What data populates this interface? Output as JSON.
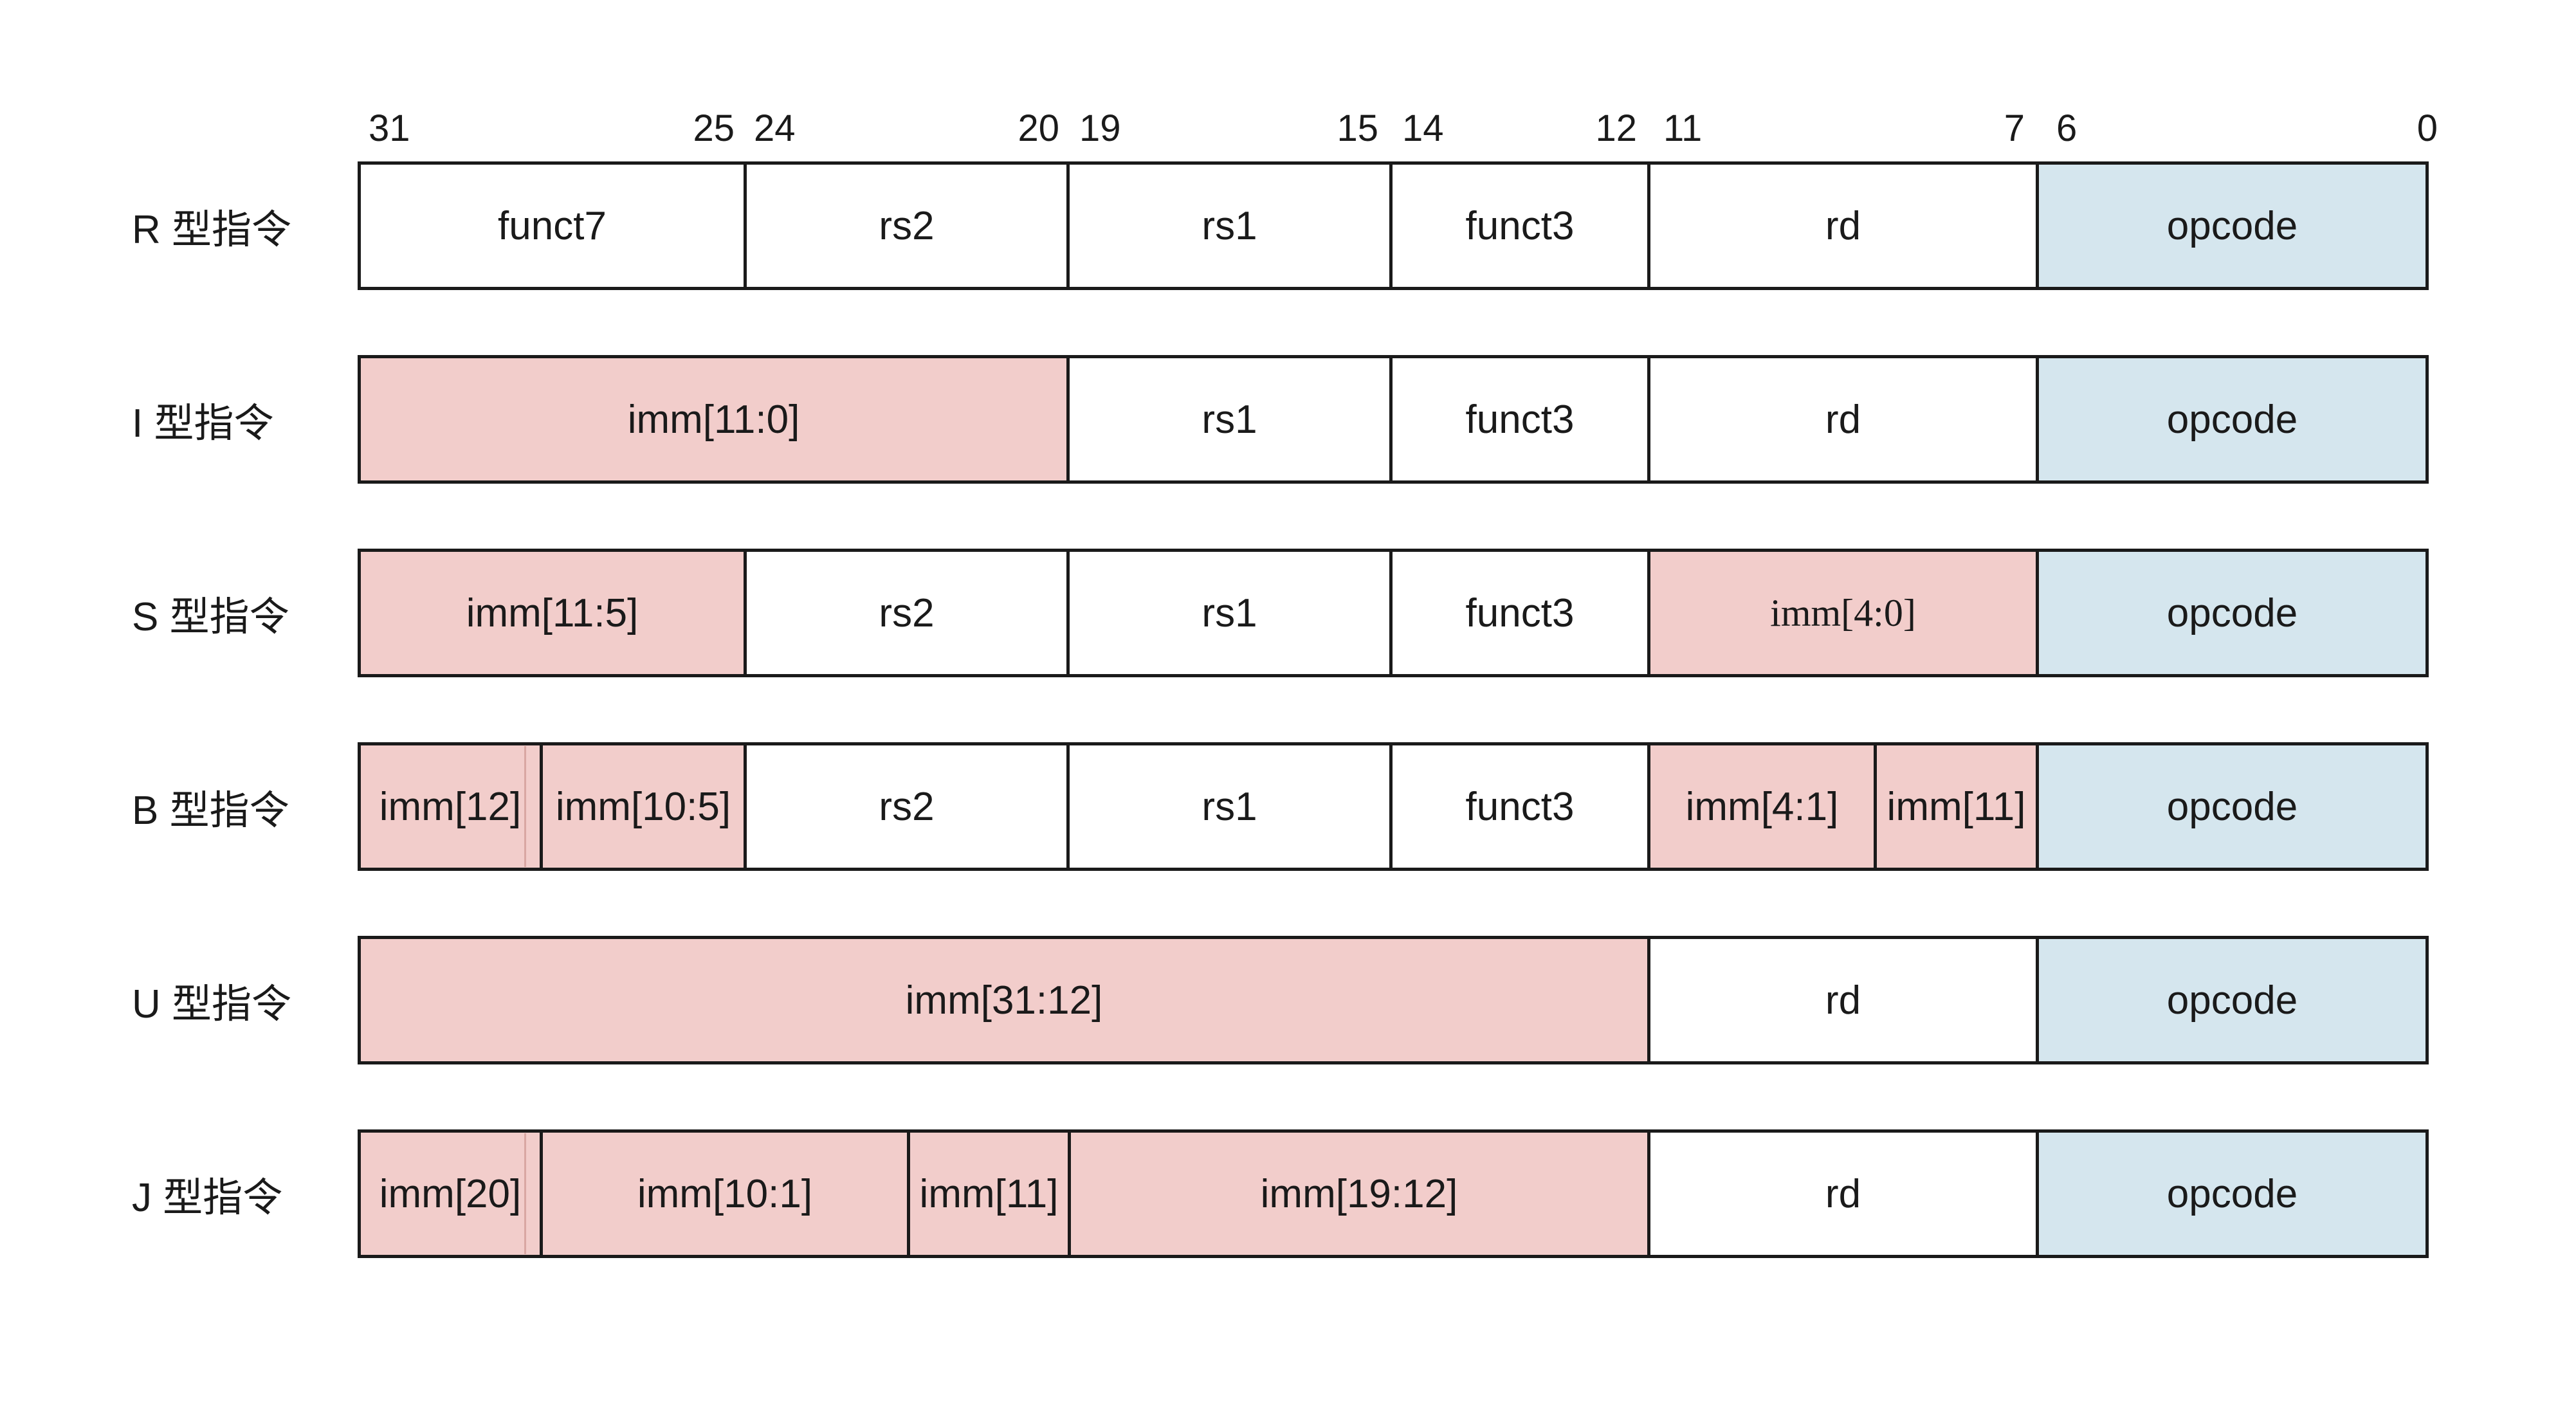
{
  "bit_positions": [
    {
      "id": "b31",
      "text": "31"
    },
    {
      "id": "b25",
      "text": "25"
    },
    {
      "id": "b24",
      "text": "24"
    },
    {
      "id": "b20",
      "text": "20"
    },
    {
      "id": "b19",
      "text": "19"
    },
    {
      "id": "b15",
      "text": "15"
    },
    {
      "id": "b14",
      "text": "14"
    },
    {
      "id": "b12",
      "text": "12"
    },
    {
      "id": "b11",
      "text": "11"
    },
    {
      "id": "b7",
      "text": "7"
    },
    {
      "id": "b6",
      "text": "6"
    },
    {
      "id": "b0",
      "text": "0"
    }
  ],
  "colors": {
    "immediate_fill": "#f2cdcb",
    "opcode_fill": "#d5e6ee",
    "plain_fill": "#ffffff",
    "border": "#1a1a1a"
  },
  "formats": [
    {
      "label": "R 型指令",
      "fields": [
        {
          "text": "funct7",
          "bits": "31-25",
          "kind": "plain"
        },
        {
          "text": "rs2",
          "bits": "24-20",
          "kind": "plain"
        },
        {
          "text": "rs1",
          "bits": "19-15",
          "kind": "plain"
        },
        {
          "text": "funct3",
          "bits": "14-12",
          "kind": "plain"
        },
        {
          "text": "rd",
          "bits": "11-7",
          "kind": "plain"
        },
        {
          "text": "opcode",
          "bits": "6-0",
          "kind": "opcode"
        }
      ]
    },
    {
      "label": "I 型指令",
      "fields": [
        {
          "text": "imm[11:0]",
          "bits": "31-20",
          "kind": "imm"
        },
        {
          "text": "rs1",
          "bits": "19-15",
          "kind": "plain"
        },
        {
          "text": "funct3",
          "bits": "14-12",
          "kind": "plain"
        },
        {
          "text": "rd",
          "bits": "11-7",
          "kind": "plain"
        },
        {
          "text": "opcode",
          "bits": "6-0",
          "kind": "opcode"
        }
      ]
    },
    {
      "label": "S 型指令",
      "fields": [
        {
          "text": "imm[11:5]",
          "bits": "31-25",
          "kind": "imm"
        },
        {
          "text": "rs2",
          "bits": "24-20",
          "kind": "plain"
        },
        {
          "text": "rs1",
          "bits": "19-15",
          "kind": "plain"
        },
        {
          "text": "funct3",
          "bits": "14-12",
          "kind": "plain"
        },
        {
          "text": "imm[4:0]",
          "bits": "11-7",
          "kind": "imm"
        },
        {
          "text": "opcode",
          "bits": "6-0",
          "kind": "opcode"
        }
      ]
    },
    {
      "label": "B 型指令",
      "fields": [
        {
          "text": "imm[12]",
          "bits": "31",
          "kind": "imm"
        },
        {
          "text": "imm[10:5]",
          "bits": "30-25",
          "kind": "imm"
        },
        {
          "text": "rs2",
          "bits": "24-20",
          "kind": "plain"
        },
        {
          "text": "rs1",
          "bits": "19-15",
          "kind": "plain"
        },
        {
          "text": "funct3",
          "bits": "14-12",
          "kind": "plain"
        },
        {
          "text": "imm[4:1]",
          "bits": "11-8",
          "kind": "imm"
        },
        {
          "text": "imm[11]",
          "bits": "7",
          "kind": "imm"
        },
        {
          "text": "opcode",
          "bits": "6-0",
          "kind": "opcode"
        }
      ]
    },
    {
      "label": "U 型指令",
      "fields": [
        {
          "text": "imm[31:12]",
          "bits": "31-12",
          "kind": "imm"
        },
        {
          "text": "rd",
          "bits": "11-7",
          "kind": "plain"
        },
        {
          "text": "opcode",
          "bits": "6-0",
          "kind": "opcode"
        }
      ]
    },
    {
      "label": "J 型指令",
      "fields": [
        {
          "text": "imm[20]",
          "bits": "31",
          "kind": "imm"
        },
        {
          "text": "imm[10:1]",
          "bits": "30-21",
          "kind": "imm"
        },
        {
          "text": "imm[11]",
          "bits": "20",
          "kind": "imm"
        },
        {
          "text": "imm[19:12]",
          "bits": "19-12",
          "kind": "imm"
        },
        {
          "text": "rd",
          "bits": "11-7",
          "kind": "plain"
        },
        {
          "text": "opcode",
          "bits": "6-0",
          "kind": "opcode"
        }
      ]
    }
  ]
}
